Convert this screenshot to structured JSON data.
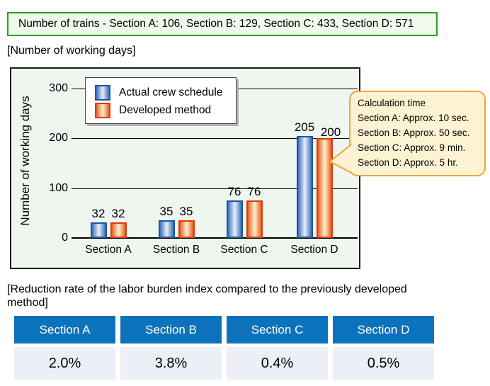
{
  "trains_banner": {
    "text": "Number of trains - Section A: 106, Section B: 129, Section C: 433, Section D: 571"
  },
  "working_days": {
    "heading": "[Number of working days]"
  },
  "chart_data": {
    "type": "bar",
    "title": "",
    "categories": [
      "Section A",
      "Section B",
      "Section C",
      "Section D"
    ],
    "series": [
      {
        "name": "Actual crew schedule",
        "values": [
          32,
          35,
          76,
          205
        ],
        "color": "#17599f"
      },
      {
        "name": "Developed method",
        "values": [
          32,
          35,
          76,
          200
        ],
        "color": "#e03910"
      }
    ],
    "ylabel": "Number of working days",
    "xlabel": "",
    "yticks": [
      0,
      100,
      200,
      300
    ],
    "ylim": [
      0,
      340
    ],
    "grid": true,
    "legend_position": "top-left-inside",
    "bar_value_labels": true
  },
  "callout": {
    "lines": [
      "Calculation time",
      "Section A: Approx. 10 sec.",
      "Section B: Approx. 50 sec.",
      "Section C: Approx. 9 min.",
      "Section D: Approx. 5 hr."
    ]
  },
  "reduction": {
    "heading": "[Reduction rate of the labor burden index compared to the previously developed method]",
    "table": {
      "headers": [
        "Section A",
        "Section B",
        "Section C",
        "Section D"
      ],
      "values": [
        "2.0%",
        "3.8%",
        "0.4%",
        "0.5%"
      ]
    }
  },
  "colors": {
    "banner_border": "#27a327",
    "banner_bg": "#f0f9ec",
    "panel_bg": "#eff5ef",
    "bar_blue_border": "#17599f",
    "bar_red_border": "#e03910",
    "callout_border": "#f1a33c",
    "callout_bg": "#fdf3d2",
    "table_header_bg": "#0d72bc",
    "table_cell_bg": "#edeff6"
  }
}
